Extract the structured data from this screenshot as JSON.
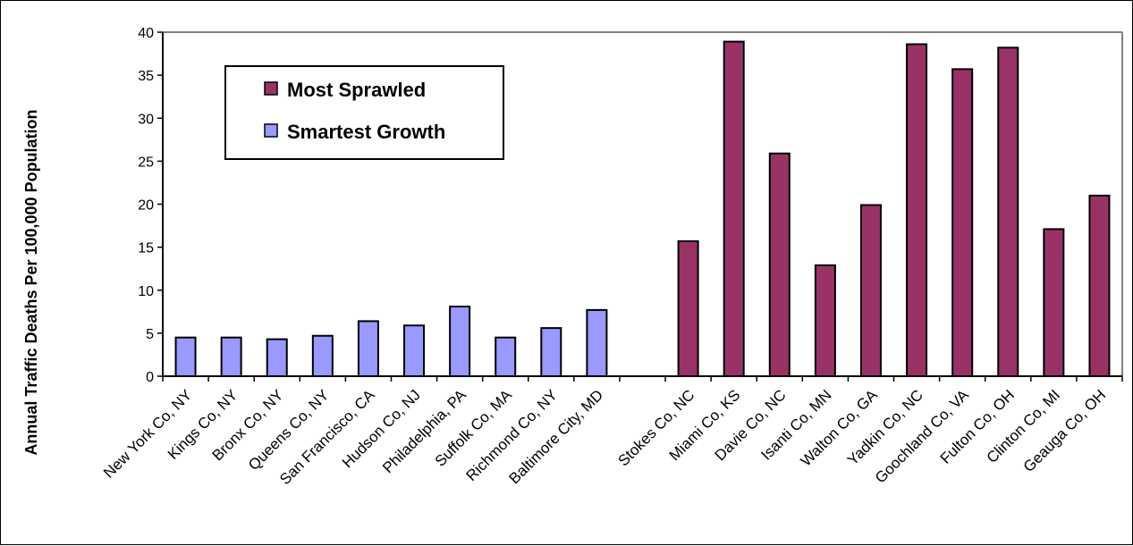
{
  "chart_data": {
    "type": "bar",
    "ylabel": "Annual Traffic Deaths Per 100,000 Population",
    "xlabel": "",
    "ylim": [
      0,
      40
    ],
    "yticks": [
      0,
      5,
      10,
      15,
      20,
      25,
      30,
      35,
      40
    ],
    "grid": false,
    "legend_position": "top-left",
    "categories": [
      "New York Co, NY",
      "Kings Co, NY",
      "Bronx Co, NY",
      "Queens Co, NY",
      "San Francisco, CA",
      "Hudson Co, NJ",
      "Philadelphia, PA",
      "Suffolk Co, MA",
      "Richmond Co, NY",
      "Baltimore City, MD",
      "",
      "Stokes Co, NC",
      "Miami Co, KS",
      "Davie Co, NC",
      "Isanti Co, MN",
      "Walton Co, GA",
      "Yadkin Co, NC",
      "Goochland Co, VA",
      "Fulton Co, OH",
      "Clinton Co, MI",
      "Geauga Co, OH"
    ],
    "series": [
      {
        "name": "Most Sprawled",
        "color": "#993366",
        "values": [
          null,
          null,
          null,
          null,
          null,
          null,
          null,
          null,
          null,
          null,
          null,
          15.7,
          38.9,
          25.9,
          12.9,
          19.9,
          38.6,
          35.7,
          38.2,
          17.1,
          21.0
        ]
      },
      {
        "name": "Smartest Growth",
        "color": "#9999ff",
        "values": [
          4.5,
          4.5,
          4.3,
          4.7,
          6.4,
          5.9,
          8.1,
          4.5,
          5.6,
          7.7,
          null,
          null,
          null,
          null,
          null,
          null,
          null,
          null,
          null,
          null,
          null
        ]
      }
    ]
  }
}
